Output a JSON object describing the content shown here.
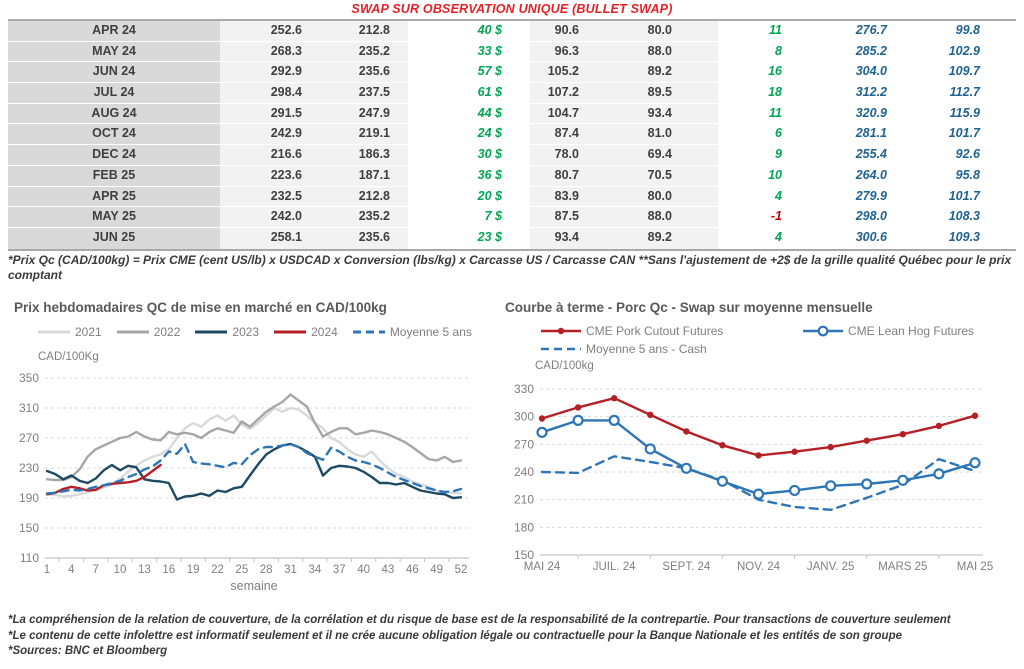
{
  "title": "SWAP SUR OBSERVATION UNIQUE (BULLET SWAP)",
  "colors": {
    "title_red": "#e32227",
    "positive_green": "#00a651",
    "negative_red": "#c00000",
    "swap_blue": "#1f6391",
    "table_text": "#3f3f3f",
    "month_col_bg": "#d9d9d9",
    "value_col_bg": "#f2f2f2"
  },
  "table": {
    "rows": [
      [
        "APR 24",
        "252.6",
        "212.8",
        "40 $",
        "90.6",
        "80.0",
        "11",
        "276.7",
        "99.8"
      ],
      [
        "MAY 24",
        "268.3",
        "235.2",
        "33 $",
        "96.3",
        "88.0",
        "8",
        "285.2",
        "102.9"
      ],
      [
        "JUN 24",
        "292.9",
        "235.6",
        "57 $",
        "105.2",
        "89.2",
        "16",
        "304.0",
        "109.7"
      ],
      [
        "JUL 24",
        "298.4",
        "237.5",
        "61 $",
        "107.2",
        "89.5",
        "18",
        "312.2",
        "112.7"
      ],
      [
        "AUG 24",
        "291.5",
        "247.9",
        "44 $",
        "104.7",
        "93.4",
        "11",
        "320.9",
        "115.9"
      ],
      [
        "OCT 24",
        "242.9",
        "219.1",
        "24 $",
        "87.4",
        "81.0",
        "6",
        "281.1",
        "101.7"
      ],
      [
        "DEC 24",
        "216.6",
        "186.3",
        "30 $",
        "78.0",
        "69.4",
        "9",
        "255.4",
        "92.6"
      ],
      [
        "FEB 25",
        "223.6",
        "187.1",
        "36 $",
        "80.7",
        "70.5",
        "10",
        "264.0",
        "95.8"
      ],
      [
        "APR 25",
        "232.5",
        "212.8",
        "20 $",
        "83.9",
        "80.0",
        "4",
        "279.9",
        "101.7"
      ],
      [
        "MAY 25",
        "242.0",
        "235.2",
        "7 $",
        "87.5",
        "88.0",
        "-1",
        "298.0",
        "108.3"
      ],
      [
        "JUN 25",
        "258.1",
        "235.6",
        "23 $",
        "93.4",
        "89.2",
        "4",
        "300.6",
        "109.3"
      ]
    ],
    "footnote": "*Prix Qc (CAD/100kg) = Prix CME (cent US/lb) x USDCAD x Conversion (lbs/kg) x Carcasse US / Carcasse CAN **Sans l'ajustement de +2$ de la grille qualité Québec pour le prix comptant"
  },
  "chart_data": [
    {
      "id": "weekly-prices",
      "type": "line",
      "title": "Prix hebdomadaires QC de mise en marché en CAD/100kg",
      "y_axis_unit": "CAD/100Kg",
      "xlabel": "semaine",
      "n_points": 52,
      "x_ticks": [
        1,
        4,
        7,
        10,
        13,
        16,
        19,
        22,
        25,
        28,
        31,
        34,
        37,
        40,
        43,
        46,
        49,
        52
      ],
      "ylim": [
        110,
        350
      ],
      "y_ticks": [
        110,
        150,
        190,
        230,
        270,
        310,
        350
      ],
      "grid": "dashed-horizontal",
      "legend_position": "top",
      "series": [
        {
          "name": "2021",
          "color": "#d9d9d9",
          "style": "solid",
          "marker": null,
          "values": [
            195,
            194,
            192,
            193,
            195,
            198,
            200,
            204,
            208,
            216,
            225,
            233,
            240,
            245,
            248,
            255,
            270,
            283,
            290,
            285,
            295,
            300,
            293,
            300,
            288,
            282,
            290,
            300,
            310,
            305,
            310,
            308,
            300,
            290,
            283,
            270,
            265,
            255,
            248,
            245,
            252,
            240,
            230,
            222,
            218,
            212,
            208,
            205,
            200,
            198,
            197,
            196
          ]
        },
        {
          "name": "2022",
          "color": "#a6a6a6",
          "style": "solid",
          "marker": null,
          "values": [
            215,
            214,
            214,
            218,
            228,
            245,
            255,
            260,
            265,
            270,
            272,
            278,
            272,
            268,
            267,
            278,
            275,
            277,
            275,
            270,
            278,
            283,
            280,
            277,
            292,
            285,
            295,
            305,
            312,
            318,
            328,
            320,
            312,
            290,
            272,
            278,
            283,
            283,
            275,
            277,
            280,
            278,
            275,
            270,
            265,
            258,
            250,
            242,
            240,
            245,
            238,
            240
          ]
        },
        {
          "name": "2023",
          "color": "#1d4a63",
          "style": "solid",
          "marker": null,
          "values": [
            226,
            222,
            215,
            220,
            213,
            210,
            216,
            227,
            234,
            227,
            233,
            231,
            215,
            213,
            212,
            210,
            188,
            192,
            193,
            196,
            193,
            200,
            198,
            203,
            205,
            220,
            235,
            248,
            255,
            260,
            262,
            258,
            252,
            245,
            220,
            230,
            233,
            232,
            230,
            225,
            218,
            210,
            210,
            208,
            210,
            205,
            200,
            198,
            196,
            195,
            190,
            191
          ]
        },
        {
          "name": "2024",
          "color": "#b42025",
          "style": "solid",
          "marker": null,
          "values": [
            195,
            197,
            202,
            205,
            203,
            200,
            201,
            207,
            209,
            210,
            211,
            213,
            218,
            226,
            234
          ]
        },
        {
          "name": "Moyenne 5 ans",
          "color": "#2e75b6",
          "style": "dashed",
          "marker": null,
          "values": [
            196,
            197,
            199,
            201,
            200,
            202,
            205,
            207,
            210,
            213,
            218,
            222,
            228,
            232,
            240,
            252,
            249,
            262,
            238,
            236,
            235,
            233,
            231,
            237,
            235,
            247,
            255,
            258,
            258,
            260,
            262,
            258,
            250,
            245,
            241,
            257,
            252,
            245,
            240,
            238,
            235,
            230,
            224,
            218,
            214,
            210,
            206,
            203,
            200,
            198,
            199,
            202
          ]
        }
      ]
    },
    {
      "id": "forward-curve",
      "type": "line",
      "title": "Courbe à terme - Porc Qc - Swap sur moyenne mensuelle",
      "y_axis_unit": "CAD/100kg",
      "n_points": 13,
      "x_ticks": [
        {
          "i": 0,
          "label": "MAI 24"
        },
        {
          "i": 2,
          "label": "JUIL. 24"
        },
        {
          "i": 4,
          "label": "SEPT. 24"
        },
        {
          "i": 6,
          "label": "NOV. 24"
        },
        {
          "i": 8,
          "label": "JANV. 25"
        },
        {
          "i": 10,
          "label": "MARS 25"
        },
        {
          "i": 12,
          "label": "MAI 25"
        }
      ],
      "ylim": [
        150,
        330
      ],
      "y_ticks": [
        150,
        180,
        210,
        240,
        270,
        300,
        330
      ],
      "grid": "dashed-horizontal",
      "legend_position": "top",
      "draw_order": "reverse",
      "series": [
        {
          "name": "CME Pork Cutout Futures",
          "color": "#b42025",
          "style": "solid",
          "marker": "dot",
          "values": [
            298,
            310,
            320,
            302,
            284,
            269,
            258,
            262,
            267,
            274,
            281,
            290,
            301
          ]
        },
        {
          "name": "CME Lean Hog Futures",
          "color": "#2e75b6",
          "style": "solid",
          "marker": "circle",
          "values": [
            283,
            296,
            296,
            265,
            244,
            230,
            216,
            220,
            225,
            227,
            231,
            238,
            250
          ]
        },
        {
          "name": "Moyenne 5 ans - Cash",
          "color": "#2e75b6",
          "style": "dashed",
          "marker": null,
          "values": [
            240,
            239,
            257,
            251,
            244,
            231,
            210,
            202,
            199,
            212,
            226,
            254,
            241
          ]
        }
      ]
    }
  ],
  "footer": {
    "line1": "*La compréhension de la relation de couverture, de la corrélation et du risque de base est de la responsabilité de la contrepartie. Pour transactions de couverture seulement",
    "line2": "*Le contenu de cette infolettre est informatif seulement et il ne crée aucune obligation légale ou contractuelle pour la Banque Nationale et les entités de son groupe",
    "line3": "*Sources: BNC et Bloomberg"
  }
}
